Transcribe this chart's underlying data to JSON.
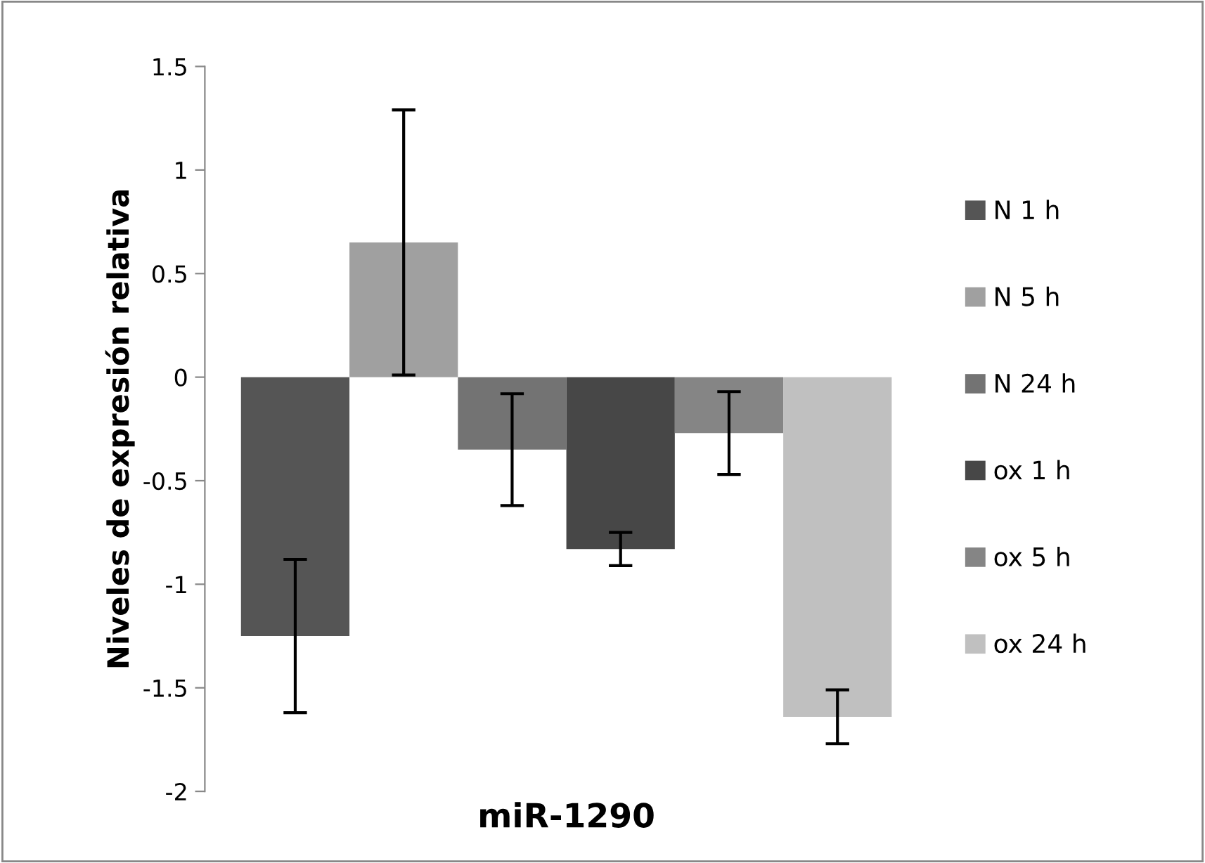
{
  "chart_data": {
    "type": "bar",
    "categories": [
      null
    ],
    "xlabel": "miR-1290",
    "ylabel": "Niveles de expresión relativa",
    "ylim": [
      -2,
      1.5
    ],
    "yticks": [
      -2,
      -1.5,
      -1,
      -0.5,
      0,
      0.5,
      1,
      1.5
    ],
    "grid": false,
    "legend": "right",
    "series": [
      {
        "name": "N 1 h",
        "color": "#555555",
        "values": [
          -1.25
        ],
        "errors": [
          0.37
        ]
      },
      {
        "name": "N 5 h",
        "color": "#a0a0a0",
        "values": [
          0.65
        ],
        "errors": [
          0.64
        ]
      },
      {
        "name": "N 24 h",
        "color": "#737373",
        "values": [
          -0.35
        ],
        "errors": [
          0.27
        ]
      },
      {
        "name": "ox 1 h",
        "color": "#474747",
        "values": [
          -0.83
        ],
        "errors": [
          0.08
        ]
      },
      {
        "name": "ox 5 h",
        "color": "#858585",
        "values": [
          -0.27
        ],
        "errors": [
          0.2
        ]
      },
      {
        "name": "ox 24 h",
        "color": "#c0c0c0",
        "values": [
          -1.64
        ],
        "errors": [
          0.13
        ]
      }
    ]
  }
}
